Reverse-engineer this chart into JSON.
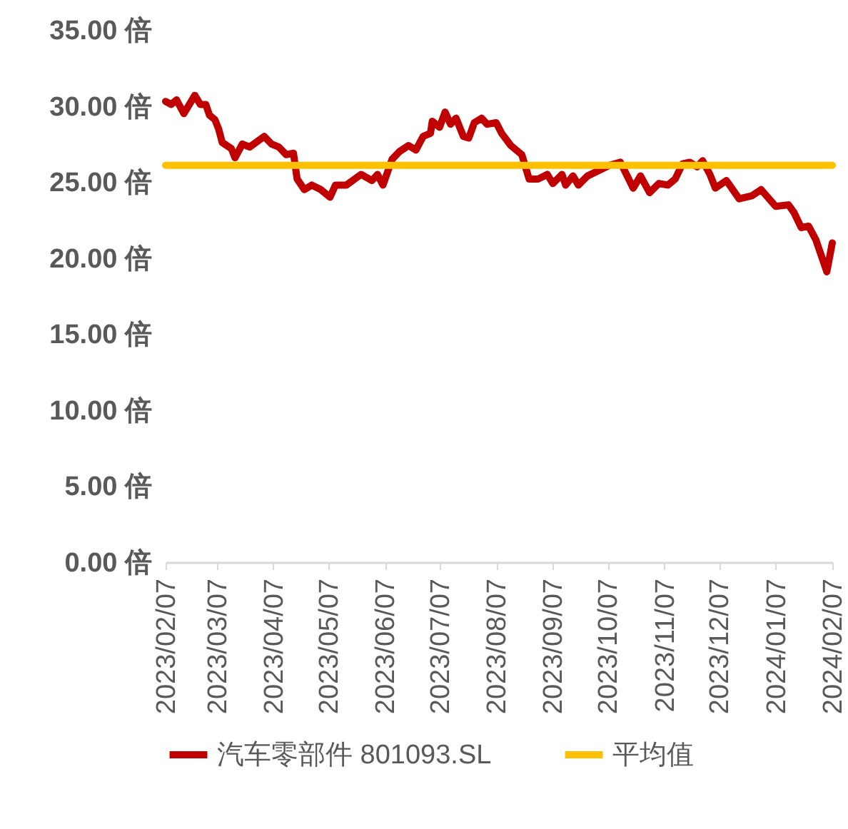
{
  "chart_data": {
    "type": "line",
    "series": [
      {
        "name": "汽车零部件 801093.SL",
        "color": "#c00000",
        "x": [
          "2023-02-07",
          "2023-02-10",
          "2023-02-13",
          "2023-02-17",
          "2023-02-23",
          "2023-02-26",
          "2023-03-01",
          "2023-03-03",
          "2023-03-06",
          "2023-03-08",
          "2023-03-10",
          "2023-03-15",
          "2023-03-17",
          "2023-03-21",
          "2023-03-25",
          "2023-04-02",
          "2023-04-06",
          "2023-04-10",
          "2023-04-14",
          "2023-04-18",
          "2023-04-20",
          "2023-04-24",
          "2023-04-28",
          "2023-05-03",
          "2023-05-08",
          "2023-05-11",
          "2023-05-17",
          "2023-05-25",
          "2023-05-31",
          "2023-06-03",
          "2023-06-06",
          "2023-06-11",
          "2023-06-15",
          "2023-06-20",
          "2023-06-24",
          "2023-06-28",
          "2023-07-02",
          "2023-07-03",
          "2023-07-07",
          "2023-07-10",
          "2023-07-13",
          "2023-07-16",
          "2023-07-20",
          "2023-07-23",
          "2023-07-26",
          "2023-07-30",
          "2023-08-02",
          "2023-08-07",
          "2023-08-10",
          "2023-08-15",
          "2023-08-21",
          "2023-08-25",
          "2023-08-30",
          "2023-09-04",
          "2023-09-07",
          "2023-09-12",
          "2023-09-14",
          "2023-09-18",
          "2023-09-21",
          "2023-09-26",
          "2023-10-03",
          "2023-10-08",
          "2023-10-14",
          "2023-10-21",
          "2023-10-25",
          "2023-10-30",
          "2023-11-04",
          "2023-11-09",
          "2023-11-13",
          "2023-11-17",
          "2023-11-21",
          "2023-11-25",
          "2023-11-28",
          "2023-12-02",
          "2023-12-05",
          "2023-12-11",
          "2023-12-18",
          "2023-12-25",
          "2023-12-30",
          "2024-01-07",
          "2024-01-14",
          "2024-01-17",
          "2024-01-21",
          "2024-01-25",
          "2024-01-29",
          "2024-02-02",
          "2024-02-04",
          "2024-02-07"
        ],
        "values": [
          30.3,
          30.1,
          30.4,
          29.5,
          30.7,
          30.1,
          30.1,
          29.4,
          29.1,
          28.5,
          27.6,
          27.2,
          26.6,
          27.5,
          27.3,
          28.0,
          27.5,
          27.3,
          26.8,
          26.9,
          25.2,
          24.5,
          24.8,
          24.5,
          24.0,
          24.8,
          24.8,
          25.5,
          25.1,
          25.5,
          24.8,
          26.5,
          27.0,
          27.4,
          27.1,
          28.0,
          28.2,
          29.0,
          28.6,
          29.6,
          28.8,
          29.2,
          28.0,
          27.9,
          28.9,
          29.2,
          28.8,
          28.9,
          28.2,
          27.4,
          26.8,
          25.2,
          25.2,
          25.5,
          24.9,
          25.5,
          24.8,
          25.4,
          24.8,
          25.4,
          25.8,
          26.1,
          26.3,
          24.6,
          25.4,
          24.3,
          24.9,
          24.8,
          25.2,
          26.2,
          26.3,
          26.0,
          26.4,
          25.5,
          24.6,
          25.1,
          23.9,
          24.1,
          24.5,
          23.4,
          23.5,
          23.0,
          22.0,
          22.1,
          21.2,
          19.8,
          19.1,
          21.0
        ]
      },
      {
        "name": "平均值",
        "color": "#ffc000",
        "x": [
          "2023-02-07",
          "2024-02-07"
        ],
        "values": [
          26.1,
          26.1
        ]
      }
    ],
    "xlim": [
      "2023-02-07",
      "2024-02-07"
    ],
    "xticks": [
      {
        "value": "2023-02-07",
        "label": "2023/02/07"
      },
      {
        "value": "2023-03-07",
        "label": "2023/03/07"
      },
      {
        "value": "2023-04-07",
        "label": "2023/04/07"
      },
      {
        "value": "2023-05-07",
        "label": "2023/05/07"
      },
      {
        "value": "2023-06-07",
        "label": "2023/06/07"
      },
      {
        "value": "2023-07-07",
        "label": "2023/07/07"
      },
      {
        "value": "2023-08-07",
        "label": "2023/08/07"
      },
      {
        "value": "2023-09-07",
        "label": "2023/09/07"
      },
      {
        "value": "2023-10-07",
        "label": "2023/10/07"
      },
      {
        "value": "2023-11-07",
        "label": "2023/11/07"
      },
      {
        "value": "2023-12-07",
        "label": "2023/12/07"
      },
      {
        "value": "2024-01-07",
        "label": "2024/01/07"
      },
      {
        "value": "2024-02-07",
        "label": "2024/02/07"
      }
    ],
    "ylim": [
      0,
      35
    ],
    "yticks": [
      {
        "value": 0,
        "label": "0.00 倍"
      },
      {
        "value": 5,
        "label": "5.00 倍"
      },
      {
        "value": 10,
        "label": "10.00 倍"
      },
      {
        "value": 15,
        "label": "15.00 倍"
      },
      {
        "value": 20,
        "label": "20.00 倍"
      },
      {
        "value": 25,
        "label": "25.00 倍"
      },
      {
        "value": 30,
        "label": "30.00 倍"
      },
      {
        "value": 35,
        "label": "35.00 倍"
      }
    ],
    "grid": false,
    "legend": "bottom",
    "marker": "none",
    "line_style": "solid"
  }
}
